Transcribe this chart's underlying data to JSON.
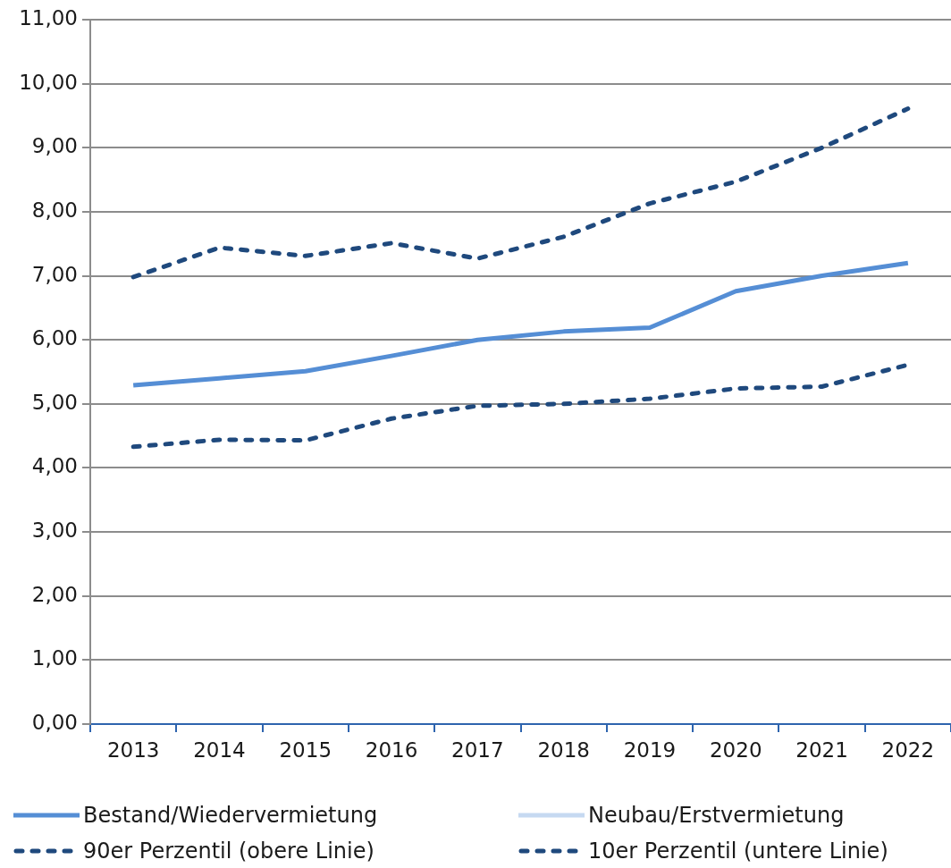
{
  "chart_data": {
    "type": "line",
    "categories": [
      "2013",
      "2014",
      "2015",
      "2016",
      "2017",
      "2018",
      "2019",
      "2020",
      "2021",
      "2022"
    ],
    "series": [
      {
        "name": "Bestand/Wiedervermietung",
        "color": "#558ed5",
        "line_style": "solid",
        "values": [
          5.29,
          5.4,
          5.51,
          5.75,
          6.0,
          6.13,
          6.19,
          6.76,
          7.0,
          7.2
        ]
      },
      {
        "name": "Neubau/Erstvermietung",
        "color": "#c6d9f1",
        "line_style": "solid",
        "values": [
          null,
          null,
          null,
          null,
          null,
          null,
          null,
          null,
          null,
          null
        ]
      },
      {
        "name": "90er Perzentil (obere Linie)",
        "color": "#1f497d",
        "line_style": "dashed",
        "values": [
          6.98,
          7.44,
          7.31,
          7.51,
          7.27,
          7.61,
          8.13,
          8.47,
          9.0,
          9.61
        ]
      },
      {
        "name": "10er Perzentil (untere Linie)",
        "color": "#1f497d",
        "line_style": "dashed",
        "values": [
          4.33,
          4.44,
          4.43,
          4.77,
          4.97,
          5.0,
          5.08,
          5.24,
          5.27,
          5.61
        ]
      }
    ],
    "ylim": [
      0,
      11
    ],
    "yticks": [
      {
        "value": 0,
        "label": "0,00"
      },
      {
        "value": 1,
        "label": "1,00"
      },
      {
        "value": 2,
        "label": "2,00"
      },
      {
        "value": 3,
        "label": "3,00"
      },
      {
        "value": 4,
        "label": "4,00"
      },
      {
        "value": 5,
        "label": "5,00"
      },
      {
        "value": 6,
        "label": "6,00"
      },
      {
        "value": 7,
        "label": "7,00"
      },
      {
        "value": 8,
        "label": "8,00"
      },
      {
        "value": 9,
        "label": "9,00"
      },
      {
        "value": 10,
        "label": "10,00"
      },
      {
        "value": 11,
        "label": "11,00"
      }
    ],
    "grid": "y",
    "legend": "bottom",
    "marker": "none"
  }
}
